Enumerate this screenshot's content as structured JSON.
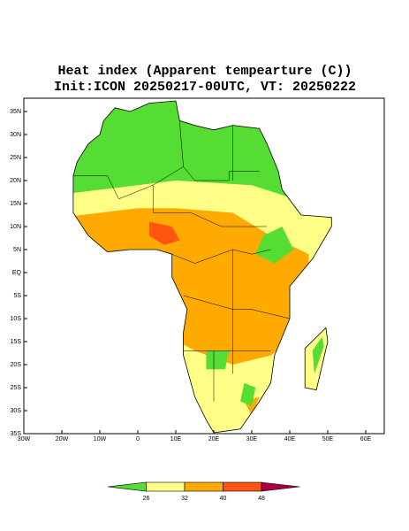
{
  "title": "Heat index (Apparent tempearture (C))",
  "subtitle": "Init:ICON 20250217-00UTC, VT: 20250222",
  "lat_labels": [
    "35N",
    "30N",
    "25N",
    "20N",
    "15N",
    "10N",
    "5N",
    "EQ",
    "5S",
    "10S",
    "15S",
    "20S",
    "25S",
    "30S",
    "35S"
  ],
  "lon_labels": [
    "30W",
    "20W",
    "10W",
    "0",
    "10E",
    "20E",
    "30E",
    "40E",
    "50E",
    "60E"
  ],
  "colorbar": {
    "colors": [
      "#55dd33",
      "#ffff88",
      "#ffaa00",
      "#ff5511",
      "#aa0044"
    ],
    "levels": [
      26,
      32,
      40,
      48
    ]
  }
}
